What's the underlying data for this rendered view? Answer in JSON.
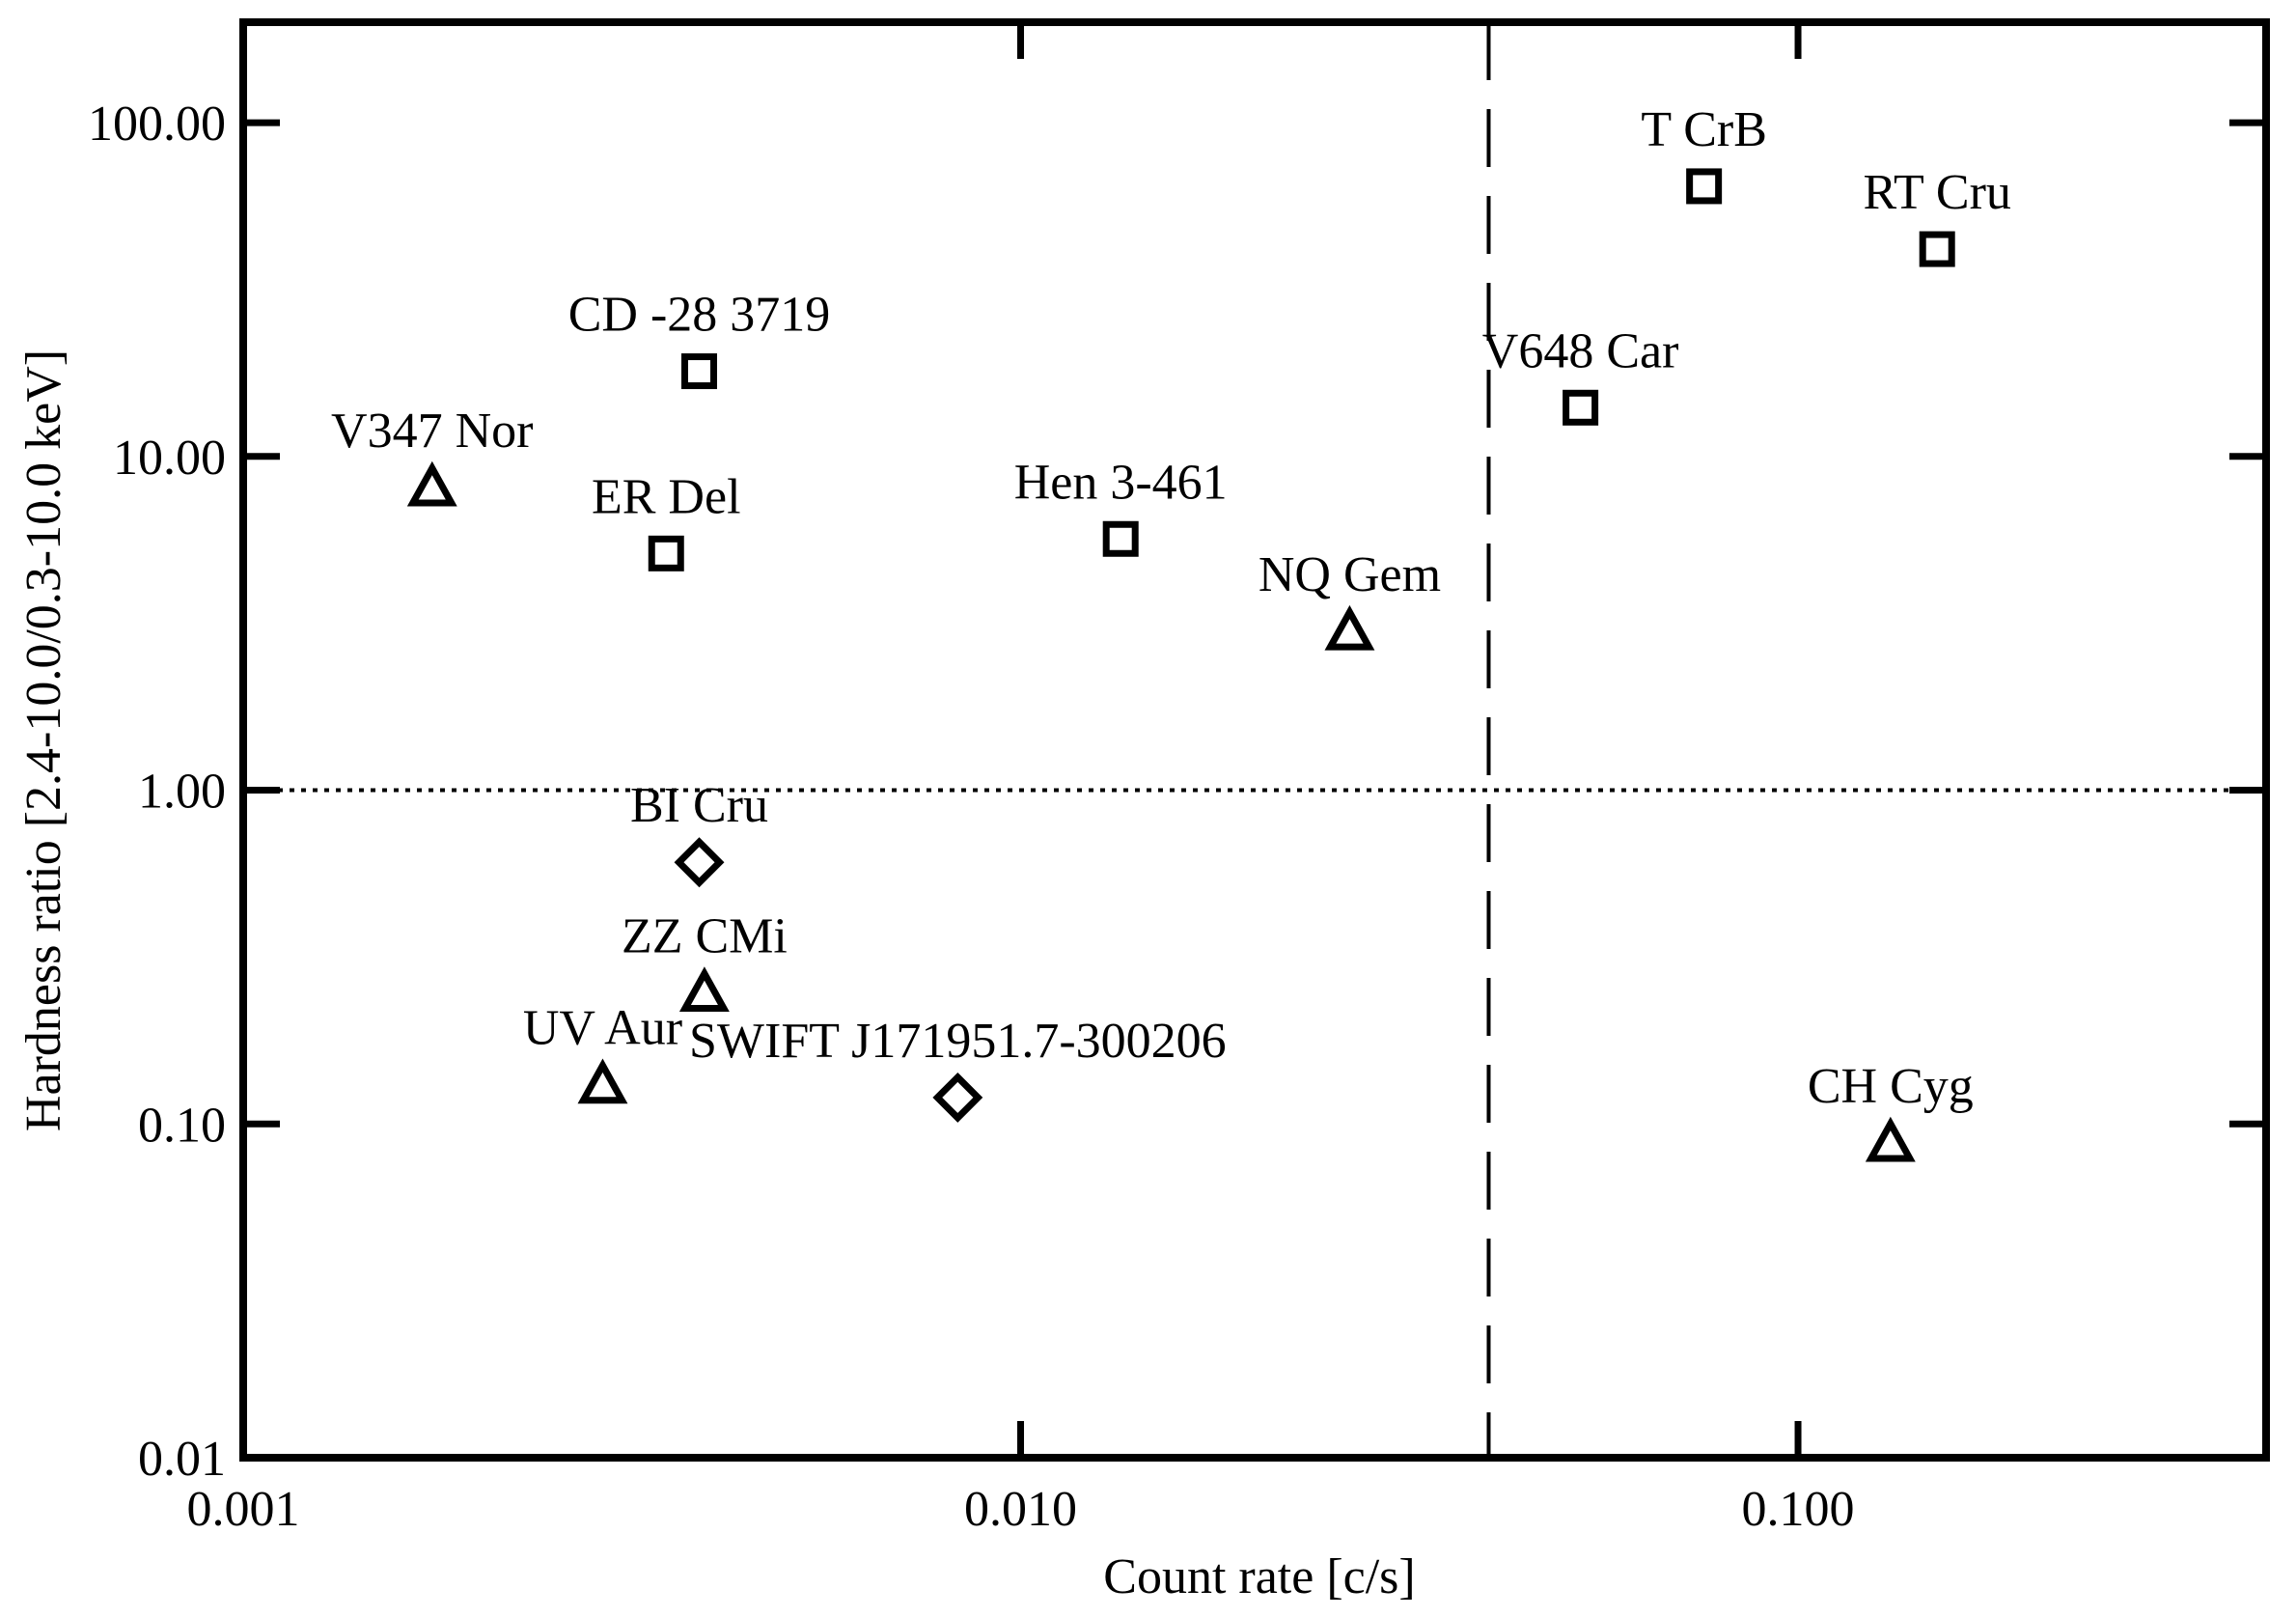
{
  "chart_data": {
    "type": "scatter",
    "x_label": "Count rate [c/s]",
    "y_label": "Hardness ratio [2.4-10.0/0.3-10.0 keV]",
    "xlog": true,
    "ylog": true,
    "xlim": [
      0.001,
      0.4
    ],
    "ylim": [
      0.01,
      200
    ],
    "xticks": [
      0.001,
      {
        "value": 0.01,
        "label": "0.010"
      },
      {
        "value": 0.1,
        "label": "0.100"
      }
    ],
    "yticks": [
      0.01,
      {
        "value": 0.1,
        "label": "0.10"
      },
      {
        "value": 1,
        "label": "1.00"
      },
      {
        "value": 10,
        "label": "10.00"
      },
      {
        "value": 100,
        "label": "100.00"
      }
    ],
    "vline": 0.04,
    "hline": 1,
    "color": "#000000",
    "series": [
      {
        "marker": "square",
        "labels": [
          "T CrB",
          "RT Cru",
          "V648 Car",
          "CD -28 3719",
          "ER Del",
          "Hen 3-461"
        ],
        "x": [
          0.0757,
          0.151,
          0.0525,
          0.00386,
          0.0035,
          0.01345
        ],
        "values": [
          64.5,
          41.8,
          14.0,
          18.0,
          5.12,
          5.66
        ]
      },
      {
        "marker": "triangle",
        "labels": [
          "V347 Nor",
          "NQ Gem",
          "ZZ CMi",
          "UV Aur",
          "CH Cyg"
        ],
        "x": [
          0.00175,
          0.0265,
          0.00392,
          0.0029,
          0.1315
        ],
        "values": [
          8.07,
          2.99,
          0.247,
          0.131,
          0.0877
        ]
      },
      {
        "marker": "diamond",
        "labels": [
          "BI Cru",
          "SWIFT J171951.7-300206"
        ],
        "x": [
          0.00386,
          0.0083
        ],
        "values": [
          0.608,
          0.12
        ]
      }
    ]
  }
}
